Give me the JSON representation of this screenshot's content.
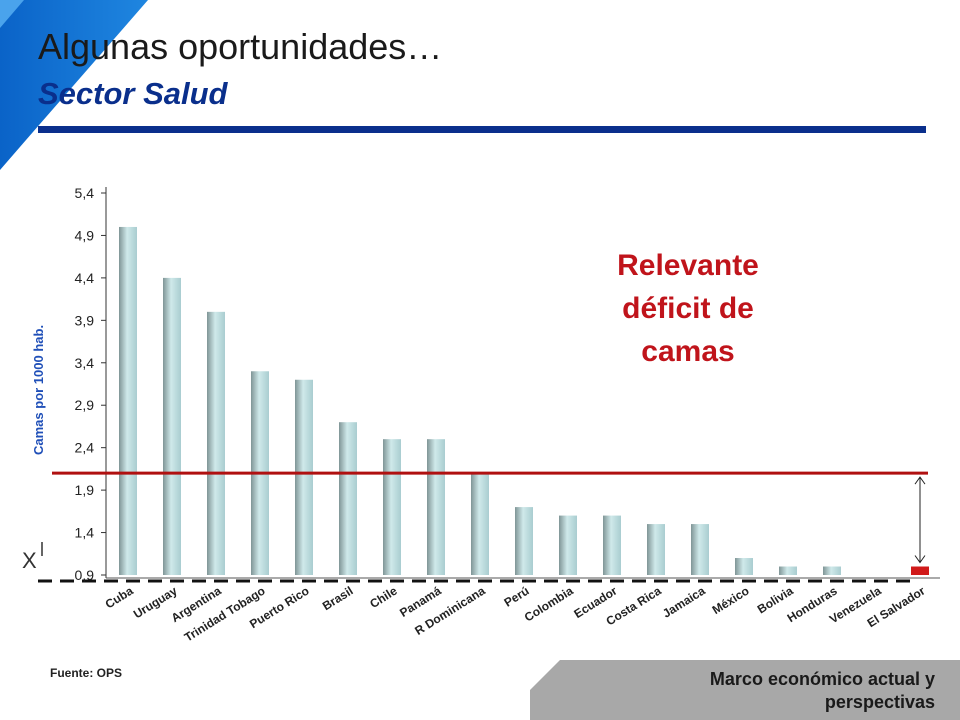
{
  "header": {
    "title": "Algunas oportunidades…",
    "subtitle": "Sector Salud"
  },
  "chart_data": {
    "type": "bar",
    "ylabel": "Camas por 1000 hab.",
    "categories": [
      "Cuba",
      "Uruguay",
      "Argentina",
      "Trinidad Tobago",
      "Puerto Rico",
      "Brasil",
      "Chile",
      "Panamá",
      "R Dominicana",
      "Perú",
      "Colombia",
      "Ecuador",
      "Costa Rica",
      "Jamaica",
      "México",
      "Bolivia",
      "Honduras",
      "Venezuela",
      "El Salvador"
    ],
    "values": [
      5.0,
      4.4,
      4.0,
      3.3,
      3.2,
      2.7,
      2.5,
      2.5,
      2.1,
      1.7,
      1.6,
      1.6,
      1.5,
      1.5,
      1.1,
      1.0,
      1.0,
      null,
      1.0
    ],
    "yticks": [
      "5,4",
      "4,9",
      "4,4",
      "3,9",
      "3,4",
      "2,9",
      "2,4",
      "1,9",
      "1,4",
      "0,9"
    ],
    "ylim": [
      0.9,
      5.4
    ],
    "reference_line": 2.1,
    "highlight_category": "El Salvador",
    "colors": {
      "bar": "#b9dde0",
      "highlight": "#d11a1a",
      "reference": "#b01010"
    },
    "grid": false
  },
  "annotation": {
    "lines": [
      "Relevante",
      "déficit de",
      "camas"
    ]
  },
  "axis_break_symbol": "X",
  "source": "Fuente: OPS",
  "footer": {
    "lines": [
      "Marco económico actual y",
      "perspectivas"
    ]
  }
}
